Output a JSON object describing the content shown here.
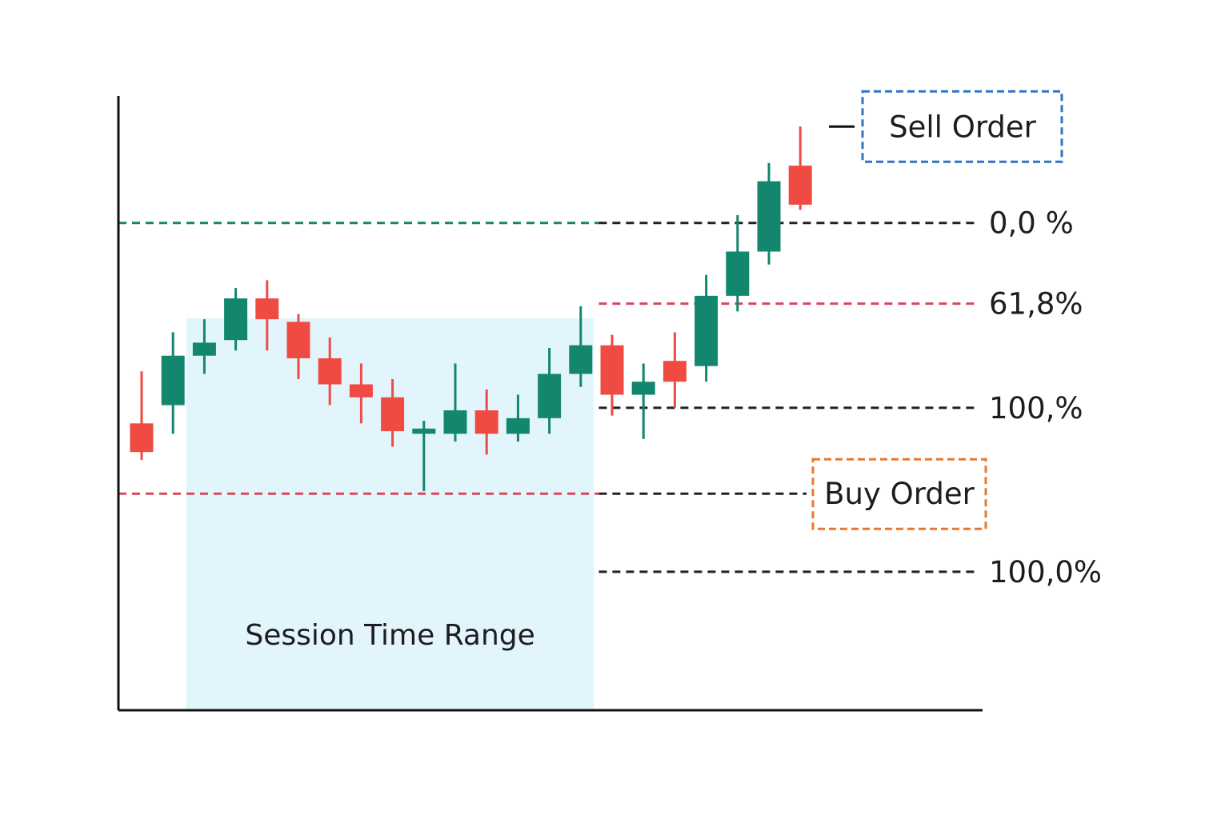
{
  "chart_data": {
    "type": "candlestick",
    "title": "",
    "xlabel": "",
    "ylabel": "",
    "grid": false,
    "ylim": [
      0,
      100
    ],
    "colors": {
      "bullish": "#13866e",
      "bearish": "#ef4b43",
      "session_fill": "#e2f5fc",
      "axis": "#111111",
      "sell_box": "#2f74c9",
      "buy_box": "#e8782f",
      "level_green": "#13866e",
      "level_red": "#d7495b",
      "level_dark": "#222222"
    },
    "session": {
      "label": "Session Time Range",
      "start_index": 2,
      "end_index": 14
    },
    "candles": [
      {
        "open": 40.5,
        "high": 50.5,
        "low": 33.5,
        "close": 35.0
      },
      {
        "open": 44.0,
        "high": 58.0,
        "low": 38.5,
        "close": 53.5
      },
      {
        "open": 53.5,
        "high": 60.5,
        "low": 50.0,
        "close": 56.0
      },
      {
        "open": 56.5,
        "high": 66.5,
        "low": 54.5,
        "close": 64.5
      },
      {
        "open": 64.5,
        "high": 68.0,
        "low": 54.5,
        "close": 60.5
      },
      {
        "open": 60.0,
        "high": 61.5,
        "low": 49.0,
        "close": 53.0
      },
      {
        "open": 53.0,
        "high": 57.0,
        "low": 44.0,
        "close": 48.0
      },
      {
        "open": 48.0,
        "high": 52.0,
        "low": 40.5,
        "close": 45.5
      },
      {
        "open": 45.5,
        "high": 49.0,
        "low": 36.0,
        "close": 39.0
      },
      {
        "open": 38.5,
        "high": 41.0,
        "low": 27.5,
        "close": 39.5
      },
      {
        "open": 38.5,
        "high": 52.0,
        "low": 37.0,
        "close": 43.0
      },
      {
        "open": 43.0,
        "high": 47.0,
        "low": 34.5,
        "close": 38.5
      },
      {
        "open": 38.5,
        "high": 46.0,
        "low": 37.0,
        "close": 41.5
      },
      {
        "open": 41.5,
        "high": 55.0,
        "low": 38.5,
        "close": 50.0
      },
      {
        "open": 50.0,
        "high": 63.0,
        "low": 47.5,
        "close": 55.5
      },
      {
        "open": 55.5,
        "high": 57.5,
        "low": 42.0,
        "close": 46.0
      },
      {
        "open": 46.0,
        "high": 52.0,
        "low": 37.5,
        "close": 48.5
      },
      {
        "open": 52.5,
        "high": 58.0,
        "low": 43.5,
        "close": 48.5
      },
      {
        "open": 51.5,
        "high": 69.0,
        "low": 48.5,
        "close": 65.0
      },
      {
        "open": 65.0,
        "high": 80.5,
        "low": 62.0,
        "close": 73.5
      },
      {
        "open": 73.5,
        "high": 90.5,
        "low": 71.0,
        "close": 87.0
      },
      {
        "open": 90.0,
        "high": 97.5,
        "low": 81.5,
        "close": 82.5
      }
    ],
    "levels": [
      {
        "label": "0,0 %",
        "value": 79.0
      },
      {
        "label": "61,8%",
        "value": 63.5
      },
      {
        "label": "100,%",
        "value": 43.5
      },
      {
        "label": "Buy Order",
        "value": 27.0,
        "boxed": true
      },
      {
        "label": "100,0%",
        "value": 12.0
      }
    ],
    "sell_order": {
      "label": "Sell Order",
      "value": 97.5
    }
  }
}
